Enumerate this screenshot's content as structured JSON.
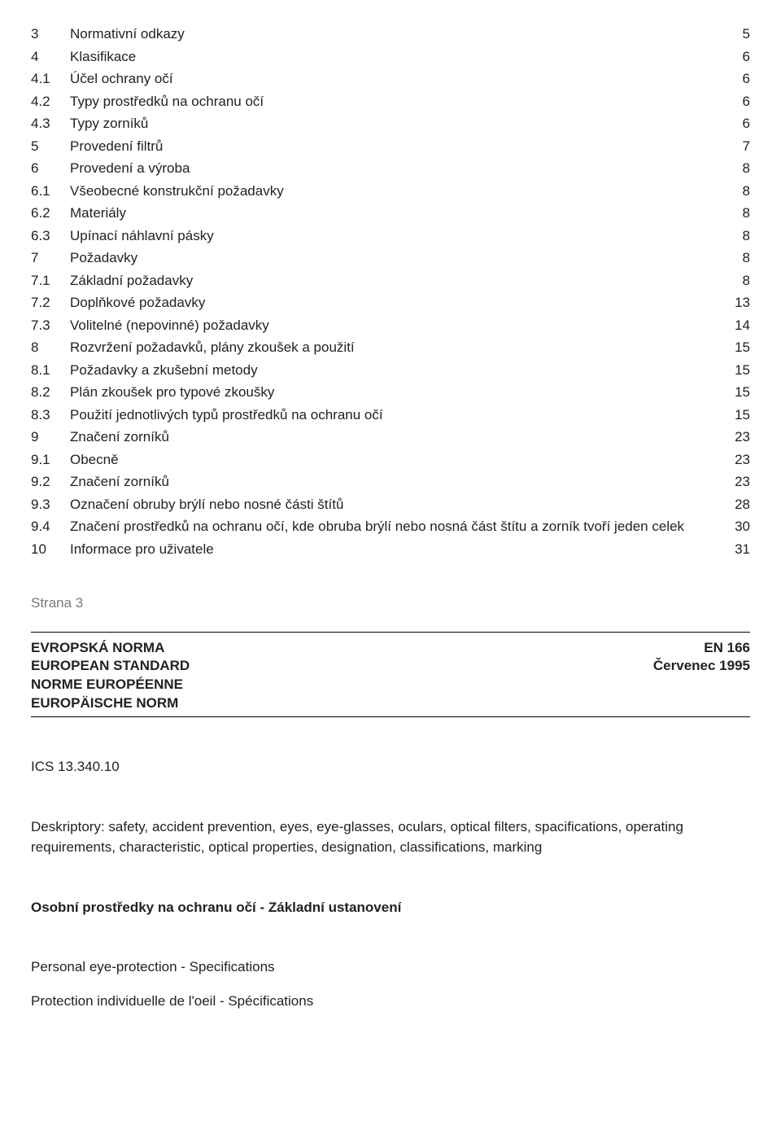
{
  "toc": {
    "rows": [
      {
        "num": "3",
        "title": "Normativní odkazy",
        "page": "5"
      },
      {
        "num": "4",
        "title": "Klasifikace",
        "page": "6"
      },
      {
        "num": "4.1",
        "title": "Účel ochrany očí",
        "page": "6"
      },
      {
        "num": "4.2",
        "title": "Typy prostředků na ochranu očí",
        "page": "6"
      },
      {
        "num": "4.3",
        "title": "Typy zorníků",
        "page": "6"
      },
      {
        "num": "5",
        "title": "Provedení filtrů",
        "page": "7"
      },
      {
        "num": "6",
        "title": "Provedení a výroba",
        "page": "8"
      },
      {
        "num": "6.1",
        "title": "Všeobecné konstrukční požadavky",
        "page": "8"
      },
      {
        "num": "6.2",
        "title": "Materiály",
        "page": "8"
      },
      {
        "num": "6.3",
        "title": "Upínací náhlavní pásky",
        "page": "8"
      },
      {
        "num": "7",
        "title": "Požadavky",
        "page": "8"
      },
      {
        "num": "7.1",
        "title": "Základní požadavky",
        "page": "8"
      },
      {
        "num": "7.2",
        "title": "Doplňkové požadavky",
        "page": "13"
      },
      {
        "num": "7.3",
        "title": "Volitelné (nepovinné) požadavky",
        "page": "14"
      },
      {
        "num": "8",
        "title": "Rozvržení požadavků, plány zkoušek a použití",
        "page": "15"
      },
      {
        "num": "8.1",
        "title": "Požadavky a zkušební metody",
        "page": "15"
      },
      {
        "num": "8.2",
        "title": "Plán zkoušek pro typové zkoušky",
        "page": "15"
      },
      {
        "num": "8.3",
        "title": "Použití jednotlivých typů prostředků na ochranu očí",
        "page": "15"
      },
      {
        "num": "9",
        "title": "Značení zorníků",
        "page": "23"
      },
      {
        "num": "9.1",
        "title": "Obecně",
        "page": "23"
      },
      {
        "num": "9.2",
        "title": "Značení zorníků",
        "page": "23"
      },
      {
        "num": "9.3",
        "title": "Označení obruby brýlí nebo nosné části štítů",
        "page": "28"
      },
      {
        "num": "9.4",
        "title": "Značení prostředků na ochranu očí, kde obruba brýlí nebo nosná část štítu a zorník tvoří jeden celek",
        "page": "30"
      },
      {
        "num": "10",
        "title": "Informace pro uživatele",
        "page": "31"
      }
    ]
  },
  "strana": "Strana 3",
  "norm_header": {
    "left_lines": [
      "EVROPSKÁ NORMA",
      "EUROPEAN STANDARD",
      "NORME EUROPÉENNE",
      "EUROPÄISCHE NORM"
    ],
    "right_lines": [
      "EN 166",
      "Červenec 1995"
    ]
  },
  "ics": "ICS 13.340.10",
  "descriptors": "Deskriptory: safety, accident prevention, eyes, eye-glasses, oculars, optical filters, spacifications, operating  requirements, characteristic, optical properties, designation, classifications, marking",
  "title_cs": "Osobní prostředky na ochranu očí - Základní ustanovení",
  "title_en": "Personal eye-protection - Specifications",
  "title_fr": "Protection individuelle de l'oeil - Spécifications",
  "colors": {
    "text": "#222222",
    "muted": "#7a7a7a",
    "rule": "#000000",
    "background": "#ffffff"
  },
  "typography": {
    "base_font_size_pt": 13,
    "bold_weight": 700
  }
}
